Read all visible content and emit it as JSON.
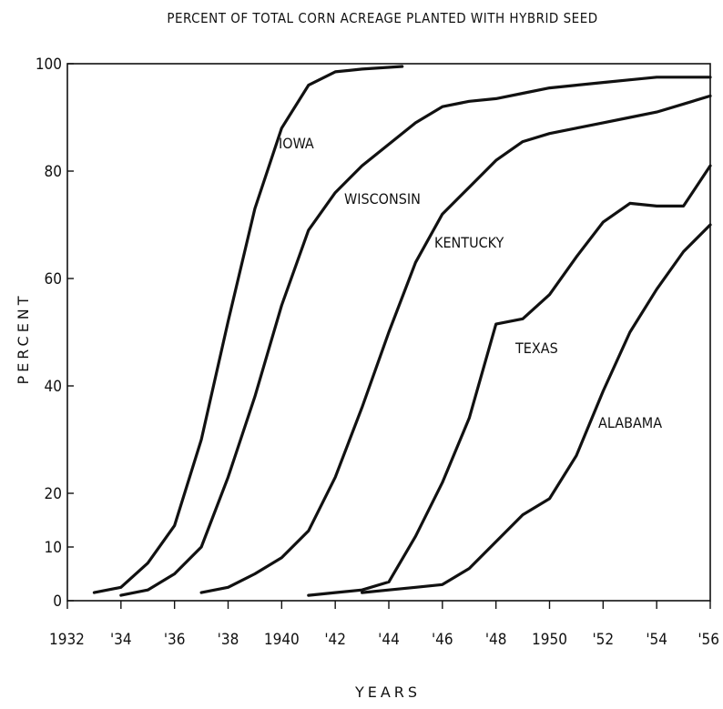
{
  "chart_data": {
    "type": "line",
    "title": "PERCENT OF TOTAL CORN ACREAGE PLANTED WITH HYBRID SEED",
    "xlabel": "YEARS",
    "ylabel": "PERCENT",
    "xlim": [
      1932,
      1956
    ],
    "ylim": [
      0,
      100
    ],
    "x_ticks": [
      {
        "value": 1932,
        "label": "1932"
      },
      {
        "value": 1934,
        "label": "'34"
      },
      {
        "value": 1936,
        "label": "'36"
      },
      {
        "value": 1938,
        "label": "'38"
      },
      {
        "value": 1940,
        "label": "1940"
      },
      {
        "value": 1942,
        "label": "'42"
      },
      {
        "value": 1944,
        "label": "'44"
      },
      {
        "value": 1946,
        "label": "'46"
      },
      {
        "value": 1948,
        "label": "'48"
      },
      {
        "value": 1950,
        "label": "1950"
      },
      {
        "value": 1952,
        "label": "'52"
      },
      {
        "value": 1954,
        "label": "'54"
      },
      {
        "value": 1956,
        "label": "'56"
      }
    ],
    "y_ticks": [
      {
        "value": 0,
        "label": "0"
      },
      {
        "value": 10,
        "label": "10"
      },
      {
        "value": 20,
        "label": "20"
      },
      {
        "value": 40,
        "label": "40"
      },
      {
        "value": 60,
        "label": "60"
      },
      {
        "value": 80,
        "label": "80"
      },
      {
        "value": 100,
        "label": "100"
      }
    ],
    "grid": false,
    "series": [
      {
        "name": "IOWA",
        "x": [
          1933,
          1934,
          1935,
          1936,
          1937,
          1938,
          1939,
          1940,
          1941,
          1942,
          1943,
          1944.5
        ],
        "y": [
          1.5,
          2.5,
          7,
          14,
          30,
          52,
          73,
          88,
          96,
          98.5,
          99,
          99.5
        ]
      },
      {
        "name": "WISCONSIN",
        "x": [
          1934,
          1935,
          1936,
          1937,
          1938,
          1939,
          1940,
          1941,
          1942,
          1943,
          1944,
          1945,
          1946,
          1947,
          1948,
          1949,
          1950,
          1951,
          1952,
          1953,
          1954,
          1955,
          1956
        ],
        "y": [
          1,
          2,
          5,
          10,
          23,
          38,
          55,
          69,
          76,
          81,
          85,
          89,
          92,
          93,
          93.5,
          94.5,
          95.5,
          96,
          96.5,
          97,
          97.5,
          97.5,
          97.5
        ]
      },
      {
        "name": "KENTUCKY",
        "x": [
          1937,
          1938,
          1939,
          1940,
          1941,
          1942,
          1943,
          1944,
          1945,
          1946,
          1947,
          1948,
          1949,
          1950,
          1951,
          1952,
          1953,
          1954,
          1955,
          1956
        ],
        "y": [
          1.5,
          2.5,
          5,
          8,
          13,
          23,
          36,
          50,
          63,
          72,
          77,
          82,
          85.5,
          87,
          88,
          89,
          90,
          91,
          92.5,
          94
        ]
      },
      {
        "name": "TEXAS",
        "x": [
          1941,
          1942,
          1943,
          1944,
          1945,
          1946,
          1947,
          1948,
          1949,
          1950,
          1951,
          1952,
          1953,
          1954,
          1955,
          1956
        ],
        "y": [
          1,
          1.5,
          2,
          3.5,
          12,
          22,
          34,
          51.5,
          52.5,
          57,
          64,
          70.5,
          74,
          73.5,
          73.5,
          81
        ]
      },
      {
        "name": "ALABAMA",
        "x": [
          1943,
          1944,
          1945,
          1946,
          1947,
          1948,
          1949,
          1950,
          1951,
          1952,
          1953,
          1954,
          1955,
          1956
        ],
        "y": [
          1.5,
          2,
          2.5,
          3,
          6,
          11,
          16,
          19,
          27,
          39,
          50,
          58,
          65,
          70
        ]
      }
    ]
  },
  "labels": {
    "iowa": "IOWA",
    "wisconsin": "WISCONSIN",
    "kentucky": "KENTUCKY",
    "texas": "TEXAS",
    "alabama": "ALABAMA"
  }
}
